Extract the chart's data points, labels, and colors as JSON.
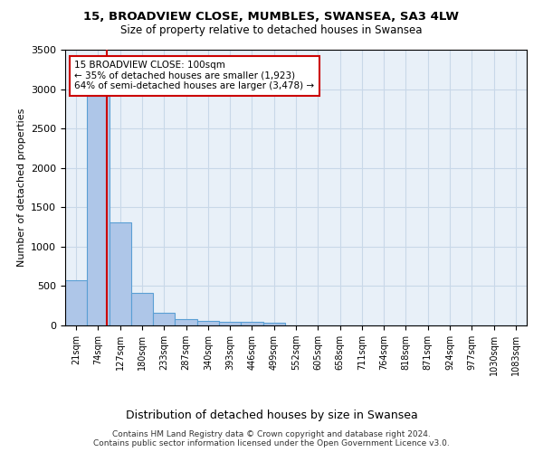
{
  "title": "15, BROADVIEW CLOSE, MUMBLES, SWANSEA, SA3 4LW",
  "subtitle": "Size of property relative to detached houses in Swansea",
  "xlabel": "Distribution of detached houses by size in Swansea",
  "ylabel": "Number of detached properties",
  "footer": "Contains HM Land Registry data © Crown copyright and database right 2024.\nContains public sector information licensed under the Open Government Licence v3.0.",
  "bin_labels": [
    "21sqm",
    "74sqm",
    "127sqm",
    "180sqm",
    "233sqm",
    "287sqm",
    "340sqm",
    "393sqm",
    "446sqm",
    "499sqm",
    "552sqm",
    "605sqm",
    "658sqm",
    "711sqm",
    "764sqm",
    "818sqm",
    "871sqm",
    "924sqm",
    "977sqm",
    "1030sqm",
    "1083sqm"
  ],
  "bar_values": [
    575,
    2910,
    1310,
    415,
    155,
    80,
    55,
    45,
    45,
    30,
    0,
    0,
    0,
    0,
    0,
    0,
    0,
    0,
    0,
    0,
    0
  ],
  "bar_color": "#aec6e8",
  "bar_edge_color": "#5a9fd4",
  "grid_color": "#c8d8e8",
  "background_color": "#e8f0f8",
  "red_line_x": 1.38,
  "annotation_text": "15 BROADVIEW CLOSE: 100sqm\n← 35% of detached houses are smaller (1,923)\n64% of semi-detached houses are larger (3,478) →",
  "annotation_box_color": "#cc0000",
  "ylim": [
    0,
    3500
  ],
  "yticks": [
    0,
    500,
    1000,
    1500,
    2000,
    2500,
    3000,
    3500
  ]
}
